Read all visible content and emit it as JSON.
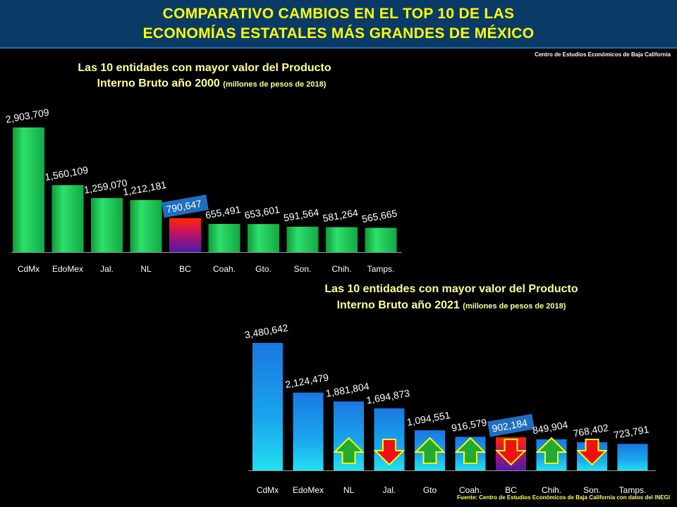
{
  "header": {
    "title_line1": "COMPARATIVO  CAMBIOS  EN  EL TOP 10 DE  LAS",
    "title_line2": "ECONOMÍAS ESTATALES MÁS GRANDES DE MÉXICO",
    "credit": "Centro de Estudios Económicos de Baja California"
  },
  "source": "Fuente:  Centro de Estudios Económicos de Baja California con datos del INEGI",
  "colors": {
    "title": "#ffff00",
    "header_bg": "#0a3a66",
    "green_bar": "#22cc55",
    "blue_bar": "#1a8fe0",
    "bc_top": "#ff2a00",
    "bc_bottom": "#4a1aa8",
    "label_highlight": "#1f6fc0",
    "arrow_up": "#22aa33",
    "arrow_down": "#ee1111",
    "arrow_border": "#ffff00"
  },
  "chart_data": [
    {
      "type": "bar",
      "title_line1": "Las 10 entidades con mayor valor del Producto",
      "title_line2": "Interno Bruto año 2000",
      "subtitle": "(millones de pesos de 2018)",
      "categories": [
        "CdMx",
        "EdoMex",
        "Jal.",
        "NL",
        "BC",
        "Coah.",
        "Gto.",
        "Son.",
        "Chih.",
        "Tamps."
      ],
      "values": [
        2903709,
        1560109,
        1259070,
        1212181,
        790647,
        655491,
        653601,
        591564,
        581264,
        565665
      ],
      "value_labels": [
        "2,903,709",
        "1,560,109",
        "1,259,070",
        "1,212,181",
        "790,647",
        "655,491",
        "653,601",
        "591,564",
        "581,264",
        "565,665"
      ],
      "highlight": "BC",
      "grid": false,
      "legend": "none"
    },
    {
      "type": "bar",
      "title_line1": "Las 10 entidades con mayor valor del Producto",
      "title_line2": "Interno Bruto año 2021",
      "subtitle": "(millones de pesos de 2018)",
      "categories": [
        "CdMx",
        "EdoMex",
        "NL",
        "Jal.",
        "Gto",
        "Coah.",
        "BC",
        "Chih.",
        "Son.",
        "Tamps."
      ],
      "values": [
        3480642,
        2124479,
        1881804,
        1694873,
        1094551,
        916579,
        902184,
        849904,
        768402,
        723791
      ],
      "value_labels": [
        "3,480,642",
        "2,124,479",
        "1,881,804",
        "1,694,873",
        "1,094,551",
        "916,579",
        "902,184",
        "849,904",
        "768,402",
        "723,791"
      ],
      "highlight": "BC",
      "rank_change": [
        "none",
        "none",
        "up",
        "down",
        "up",
        "up",
        "down",
        "up",
        "down",
        "none"
      ],
      "grid": false,
      "legend": "none"
    }
  ]
}
